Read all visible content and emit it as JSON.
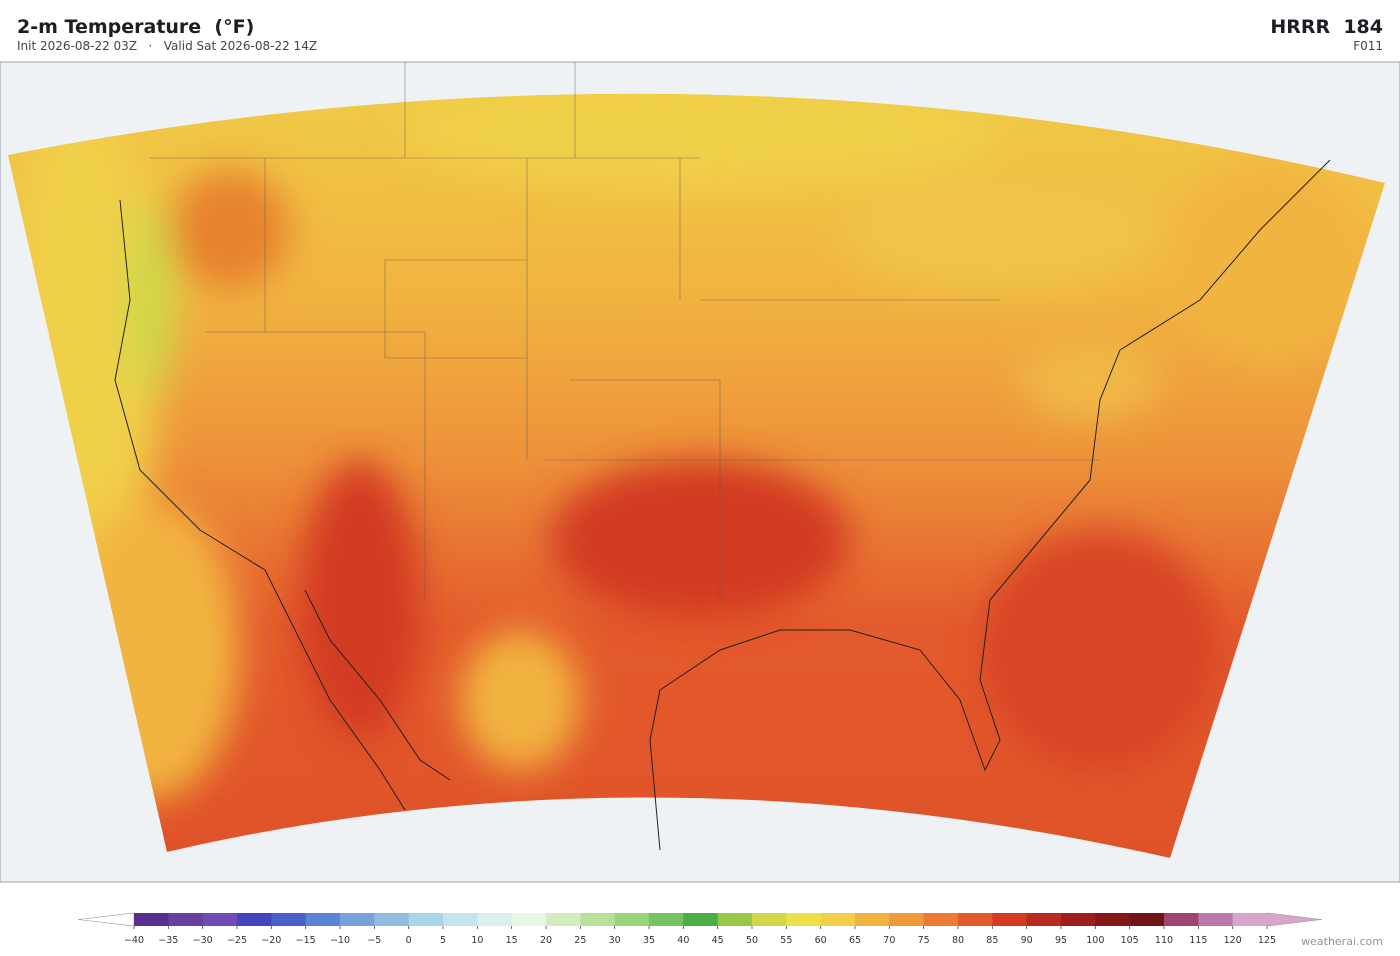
{
  "header": {
    "title": "2-m Temperature  (°F)",
    "init": "Init 2026-08-22 03Z",
    "separator": "·",
    "valid": "Valid Sat 2026-08-22 14Z",
    "model": "HRRR  184",
    "forecast_hour": "F011"
  },
  "colorbar": {
    "ticks": [
      "−40",
      "−35",
      "−30",
      "−25",
      "−20",
      "−15",
      "−10",
      "−5",
      "0",
      "5",
      "10",
      "15",
      "20",
      "25",
      "30",
      "35",
      "40",
      "45",
      "50",
      "55",
      "60",
      "65",
      "70",
      "75",
      "80",
      "85",
      "90",
      "95",
      "100",
      "105",
      "110",
      "115",
      "120",
      "125"
    ],
    "colors": [
      "#5a2d91",
      "#6b3fa0",
      "#6f4db4",
      "#4444bb",
      "#4a5fc8",
      "#5c84d4",
      "#76a2d8",
      "#90bce0",
      "#a8d4e8",
      "#c3e3ee",
      "#daf0f0",
      "#e8f6e4",
      "#d4ecc0",
      "#b8e09a",
      "#98d478",
      "#74c260",
      "#4cae48",
      "#98c848",
      "#d0d848",
      "#ece048",
      "#f3cc48",
      "#f2b440",
      "#ee9a3a",
      "#ea7a34",
      "#e35a2c",
      "#d33b22",
      "#bb2a20",
      "#9e1e1e",
      "#86181a",
      "#721418",
      "#a04472",
      "#bc78ac",
      "#d8a4cc"
    ],
    "under_color": "#ffffff",
    "over_color": "#d8a4cc"
  },
  "credit": "weatherai.com"
}
